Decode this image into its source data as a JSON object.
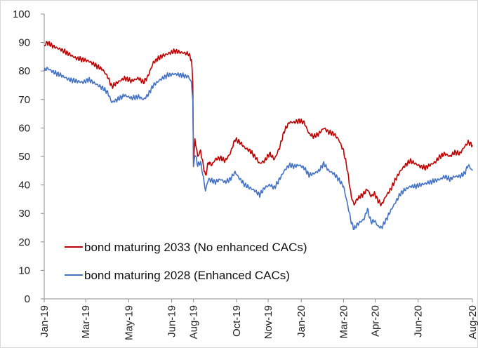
{
  "chart_data": {
    "type": "line",
    "title": "",
    "xlabel": "",
    "ylabel": "",
    "ylim": [
      0,
      100
    ],
    "yticks": [
      0,
      10,
      20,
      30,
      40,
      50,
      60,
      70,
      80,
      90,
      100
    ],
    "xlim": [
      "2019-01-01",
      "2020-08-31"
    ],
    "xticks": [
      {
        "date": "2019-01-01",
        "label": "Jan-19"
      },
      {
        "date": "2019-03-01",
        "label": "Mar-19"
      },
      {
        "date": "2019-05-01",
        "label": "May-19"
      },
      {
        "date": "2019-07-01",
        "label": "Jun-19"
      },
      {
        "date": "2019-08-01",
        "label": "Aug-19"
      },
      {
        "date": "2019-10-01",
        "label": "Oct-19"
      },
      {
        "date": "2019-11-15",
        "label": "Nov-19"
      },
      {
        "date": "2020-01-01",
        "label": "Jan-20"
      },
      {
        "date": "2020-03-01",
        "label": "Mar-20"
      },
      {
        "date": "2020-04-15",
        "label": "Apr-20"
      },
      {
        "date": "2020-06-15",
        "label": "Jun-20"
      },
      {
        "date": "2020-08-31",
        "label": "Aug-20"
      }
    ],
    "grid": false,
    "legend": "bottom-left",
    "series": [
      {
        "name": "bond maturing 2033 (No enhanced CACs)",
        "color": "#c00000",
        "points": [
          [
            "2019-01-01",
            89
          ],
          [
            "2019-01-05",
            90
          ],
          [
            "2019-01-15",
            88.5
          ],
          [
            "2019-01-25",
            87.5
          ],
          [
            "2019-02-05",
            86
          ],
          [
            "2019-02-15",
            84.5
          ],
          [
            "2019-02-25",
            84
          ],
          [
            "2019-03-05",
            83.5
          ],
          [
            "2019-03-15",
            82
          ],
          [
            "2019-03-25",
            80.5
          ],
          [
            "2019-04-01",
            78
          ],
          [
            "2019-04-07",
            74.5
          ],
          [
            "2019-04-15",
            76
          ],
          [
            "2019-04-25",
            77.5
          ],
          [
            "2019-05-05",
            76.5
          ],
          [
            "2019-05-15",
            77.5
          ],
          [
            "2019-05-22",
            76
          ],
          [
            "2019-05-28",
            78
          ],
          [
            "2019-06-05",
            83
          ],
          [
            "2019-06-15",
            85
          ],
          [
            "2019-06-25",
            86
          ],
          [
            "2019-07-05",
            87
          ],
          [
            "2019-07-15",
            86.5
          ],
          [
            "2019-07-25",
            86
          ],
          [
            "2019-07-29",
            84
          ],
          [
            "2019-07-31",
            76
          ],
          [
            "2019-08-01",
            47
          ],
          [
            "2019-08-03",
            56
          ],
          [
            "2019-08-07",
            50
          ],
          [
            "2019-08-11",
            52
          ],
          [
            "2019-08-14",
            48
          ],
          [
            "2019-08-18",
            43
          ],
          [
            "2019-08-22",
            48
          ],
          [
            "2019-08-27",
            47
          ],
          [
            "2019-09-01",
            49
          ],
          [
            "2019-09-08",
            49.5
          ],
          [
            "2019-09-15",
            48.5
          ],
          [
            "2019-09-22",
            51
          ],
          [
            "2019-09-29",
            56
          ],
          [
            "2019-10-06",
            55
          ],
          [
            "2019-10-13",
            53
          ],
          [
            "2019-10-20",
            52
          ],
          [
            "2019-10-27",
            50
          ],
          [
            "2019-11-03",
            47.5
          ],
          [
            "2019-11-10",
            48.5
          ],
          [
            "2019-11-17",
            51
          ],
          [
            "2019-11-24",
            49
          ],
          [
            "2019-12-01",
            53
          ],
          [
            "2019-12-08",
            59
          ],
          [
            "2019-12-15",
            62
          ],
          [
            "2019-12-22",
            62
          ],
          [
            "2019-12-29",
            62.5
          ],
          [
            "2020-01-05",
            62
          ],
          [
            "2020-01-12",
            58
          ],
          [
            "2020-01-19",
            57
          ],
          [
            "2020-01-26",
            58
          ],
          [
            "2020-02-02",
            60
          ],
          [
            "2020-02-09",
            58.5
          ],
          [
            "2020-02-16",
            58
          ],
          [
            "2020-02-23",
            56
          ],
          [
            "2020-03-01",
            52
          ],
          [
            "2020-03-06",
            46
          ],
          [
            "2020-03-12",
            36
          ],
          [
            "2020-03-16",
            33
          ],
          [
            "2020-03-20",
            35
          ],
          [
            "2020-03-25",
            36
          ],
          [
            "2020-03-30",
            37
          ],
          [
            "2020-04-04",
            38.5
          ],
          [
            "2020-04-09",
            36
          ],
          [
            "2020-04-14",
            37
          ],
          [
            "2020-04-19",
            34.5
          ],
          [
            "2020-04-24",
            33
          ],
          [
            "2020-04-30",
            36
          ],
          [
            "2020-05-07",
            38.5
          ],
          [
            "2020-05-14",
            42
          ],
          [
            "2020-05-21",
            45
          ],
          [
            "2020-05-28",
            47
          ],
          [
            "2020-06-04",
            48.5
          ],
          [
            "2020-06-11",
            47.5
          ],
          [
            "2020-06-18",
            46.5
          ],
          [
            "2020-06-25",
            46
          ],
          [
            "2020-07-02",
            47
          ],
          [
            "2020-07-09",
            48
          ],
          [
            "2020-07-16",
            50
          ],
          [
            "2020-07-23",
            51
          ],
          [
            "2020-07-30",
            50
          ],
          [
            "2020-08-06",
            51.5
          ],
          [
            "2020-08-13",
            51
          ],
          [
            "2020-08-20",
            53.5
          ],
          [
            "2020-08-25",
            55
          ],
          [
            "2020-08-31",
            54
          ]
        ]
      },
      {
        "name": "bond maturing 2028  (Enhanced CACs)",
        "color": "#4472c4",
        "points": [
          [
            "2019-01-01",
            80
          ],
          [
            "2019-01-05",
            81
          ],
          [
            "2019-01-15",
            79.5
          ],
          [
            "2019-01-25",
            78.5
          ],
          [
            "2019-02-05",
            77
          ],
          [
            "2019-02-15",
            76.5
          ],
          [
            "2019-02-25",
            76
          ],
          [
            "2019-03-05",
            77
          ],
          [
            "2019-03-15",
            75.5
          ],
          [
            "2019-03-25",
            74
          ],
          [
            "2019-04-01",
            72.5
          ],
          [
            "2019-04-07",
            69
          ],
          [
            "2019-04-15",
            70
          ],
          [
            "2019-04-25",
            71.5
          ],
          [
            "2019-05-05",
            70.5
          ],
          [
            "2019-05-15",
            71
          ],
          [
            "2019-05-22",
            70
          ],
          [
            "2019-05-28",
            71.5
          ],
          [
            "2019-06-05",
            75
          ],
          [
            "2019-06-15",
            77
          ],
          [
            "2019-06-25",
            78.5
          ],
          [
            "2019-07-05",
            79
          ],
          [
            "2019-07-15",
            78.5
          ],
          [
            "2019-07-25",
            78
          ],
          [
            "2019-07-29",
            76
          ],
          [
            "2019-07-31",
            70
          ],
          [
            "2019-08-01",
            46
          ],
          [
            "2019-08-03",
            51
          ],
          [
            "2019-08-07",
            47
          ],
          [
            "2019-08-11",
            48
          ],
          [
            "2019-08-14",
            44
          ],
          [
            "2019-08-18",
            38
          ],
          [
            "2019-08-22",
            42
          ],
          [
            "2019-08-27",
            41.5
          ],
          [
            "2019-09-01",
            41
          ],
          [
            "2019-09-08",
            42
          ],
          [
            "2019-09-15",
            41
          ],
          [
            "2019-09-22",
            42
          ],
          [
            "2019-09-29",
            44.5
          ],
          [
            "2019-10-06",
            42
          ],
          [
            "2019-10-13",
            40
          ],
          [
            "2019-10-20",
            39
          ],
          [
            "2019-10-27",
            38
          ],
          [
            "2019-11-03",
            36.5
          ],
          [
            "2019-11-10",
            39
          ],
          [
            "2019-11-17",
            40
          ],
          [
            "2019-11-24",
            39
          ],
          [
            "2019-12-01",
            42
          ],
          [
            "2019-12-08",
            45
          ],
          [
            "2019-12-15",
            47
          ],
          [
            "2019-12-22",
            46.5
          ],
          [
            "2019-12-29",
            47
          ],
          [
            "2020-01-05",
            46
          ],
          [
            "2020-01-12",
            43.5
          ],
          [
            "2020-01-19",
            44
          ],
          [
            "2020-01-26",
            45
          ],
          [
            "2020-02-02",
            47.5
          ],
          [
            "2020-02-09",
            45
          ],
          [
            "2020-02-16",
            44
          ],
          [
            "2020-02-23",
            42
          ],
          [
            "2020-03-01",
            39.5
          ],
          [
            "2020-03-06",
            34
          ],
          [
            "2020-03-12",
            27
          ],
          [
            "2020-03-16",
            24.5
          ],
          [
            "2020-03-20",
            26
          ],
          [
            "2020-03-25",
            27
          ],
          [
            "2020-03-30",
            28
          ],
          [
            "2020-04-04",
            31.5
          ],
          [
            "2020-04-09",
            27
          ],
          [
            "2020-04-14",
            27.5
          ],
          [
            "2020-04-19",
            25.5
          ],
          [
            "2020-04-24",
            25
          ],
          [
            "2020-04-30",
            27.5
          ],
          [
            "2020-05-07",
            31
          ],
          [
            "2020-05-14",
            34
          ],
          [
            "2020-05-21",
            37
          ],
          [
            "2020-05-28",
            38.5
          ],
          [
            "2020-06-04",
            39.5
          ],
          [
            "2020-06-11",
            39.5
          ],
          [
            "2020-06-18",
            40
          ],
          [
            "2020-06-25",
            40.5
          ],
          [
            "2020-07-02",
            41
          ],
          [
            "2020-07-09",
            41.5
          ],
          [
            "2020-07-16",
            42
          ],
          [
            "2020-07-23",
            43
          ],
          [
            "2020-07-30",
            42
          ],
          [
            "2020-08-06",
            43
          ],
          [
            "2020-08-13",
            43
          ],
          [
            "2020-08-20",
            44
          ],
          [
            "2020-08-25",
            47
          ],
          [
            "2020-08-31",
            45
          ]
        ]
      }
    ]
  }
}
